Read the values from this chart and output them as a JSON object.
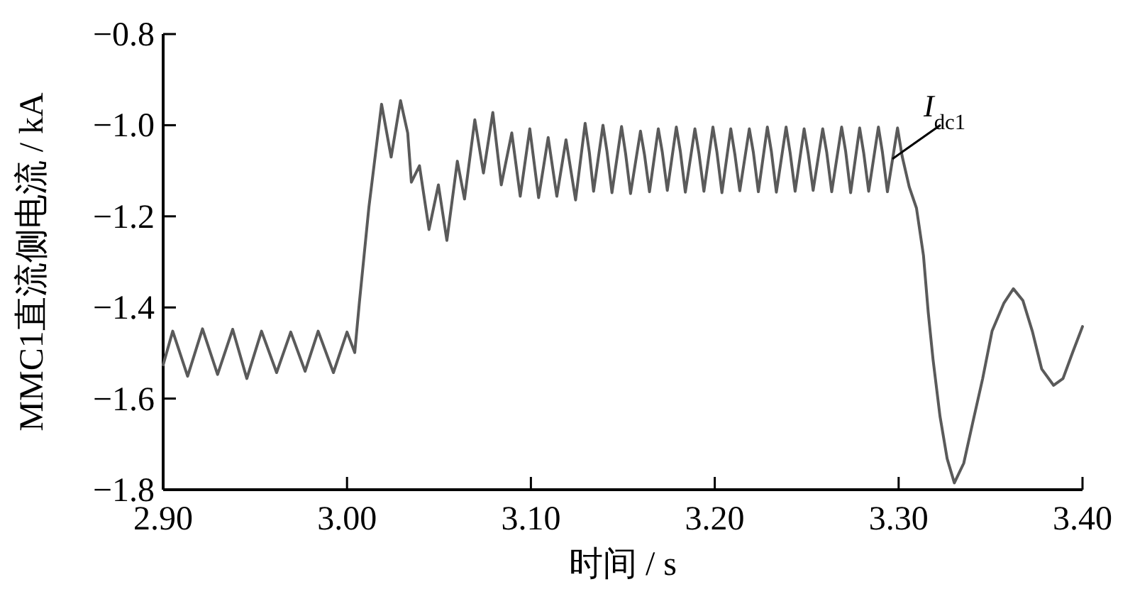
{
  "chart_data": {
    "type": "line",
    "xlabel": "时间 / s",
    "ylabel": "MMC1直流侧电流 / kA",
    "xlim": [
      2.9,
      3.4
    ],
    "ylim": [
      -1.8,
      -0.8
    ],
    "xticks": [
      {
        "value": 2.9,
        "label": "2.90"
      },
      {
        "value": 3.0,
        "label": "3.00"
      },
      {
        "value": 3.1,
        "label": "3.10"
      },
      {
        "value": 3.2,
        "label": "3.20"
      },
      {
        "value": 3.3,
        "label": "3.30"
      },
      {
        "value": 3.4,
        "label": "3.40"
      }
    ],
    "yticks": [
      {
        "value": -1.8,
        "label": "−1.8"
      },
      {
        "value": -1.6,
        "label": "−1.6"
      },
      {
        "value": -1.4,
        "label": "−1.4"
      },
      {
        "value": -1.2,
        "label": "−1.2"
      },
      {
        "value": -1.0,
        "label": "−1.0"
      },
      {
        "value": -0.8,
        "label": "−0.8"
      }
    ],
    "annotations": [
      {
        "text": "I$_{dc1}$",
        "x": 3.2966,
        "y": -1.074
      }
    ],
    "x": [
      2.9,
      2.9052,
      2.9133,
      2.9214,
      2.9296,
      2.9378,
      2.9455,
      2.9535,
      2.9617,
      2.9694,
      2.9772,
      2.9843,
      2.9926,
      3.0,
      3.0042,
      3.0067,
      3.0119,
      3.0188,
      3.024,
      3.0291,
      3.033,
      3.035,
      3.0394,
      3.0446,
      3.0497,
      3.0543,
      3.06,
      3.0639,
      3.0695,
      3.0742,
      3.0793,
      3.0839,
      3.0896,
      3.0942,
      3.0994,
      3.1042,
      3.1094,
      3.1141,
      3.1191,
      3.1243,
      3.1295,
      3.1318,
      3.1341,
      3.1392,
      3.1414,
      3.1441,
      3.1493,
      3.1515,
      3.1542,
      3.1596,
      3.1618,
      3.1645,
      3.1693,
      3.1715,
      3.1742,
      3.1791,
      3.1813,
      3.184,
      3.1892,
      3.1914,
      3.1941,
      3.199,
      3.2012,
      3.2039,
      3.2087,
      3.2109,
      3.2136,
      3.2188,
      3.221,
      3.2237,
      3.2286,
      3.2308,
      3.2335,
      3.2388,
      3.241,
      3.2437,
      3.2486,
      3.2508,
      3.2535,
      3.2587,
      3.2609,
      3.2636,
      3.269,
      3.2712,
      3.2739,
      3.2788,
      3.281,
      3.2837,
      3.289,
      3.2912,
      3.2939,
      3.2994,
      3.3019,
      3.3058,
      3.3097,
      3.3135,
      3.3161,
      3.3187,
      3.3225,
      3.3264,
      3.3303,
      3.3354,
      3.3405,
      3.3457,
      3.3508,
      3.3573,
      3.3624,
      3.3676,
      3.3727,
      3.3778,
      3.3843,
      3.3894,
      3.3946,
      3.4
    ],
    "series": [
      {
        "color": "#5a5a5a",
        "values": [
          -1.526,
          -1.452,
          -1.551,
          -1.447,
          -1.547,
          -1.448,
          -1.556,
          -1.452,
          -1.543,
          -1.454,
          -1.54,
          -1.452,
          -1.543,
          -1.454,
          -1.499,
          -1.39,
          -1.18,
          -0.954,
          -1.07,
          -0.946,
          -1.017,
          -1.125,
          -1.089,
          -1.229,
          -1.131,
          -1.253,
          -1.079,
          -1.162,
          -0.988,
          -1.105,
          -0.972,
          -1.131,
          -1.017,
          -1.156,
          -1.008,
          -1.159,
          -1.027,
          -1.156,
          -1.032,
          -1.164,
          -0.996,
          -1.06,
          -1.145,
          -1.0,
          -1.058,
          -1.148,
          -1.003,
          -1.062,
          -1.15,
          -1.013,
          -1.065,
          -1.146,
          -1.008,
          -1.06,
          -1.143,
          -1.004,
          -1.058,
          -1.147,
          -1.008,
          -1.062,
          -1.145,
          -1.004,
          -1.06,
          -1.148,
          -1.008,
          -1.063,
          -1.144,
          -1.008,
          -1.06,
          -1.146,
          -1.004,
          -1.058,
          -1.147,
          -1.004,
          -1.061,
          -1.145,
          -1.008,
          -1.062,
          -1.143,
          -1.008,
          -1.06,
          -1.146,
          -1.004,
          -1.058,
          -1.148,
          -1.006,
          -1.061,
          -1.145,
          -1.004,
          -1.06,
          -1.146,
          -1.006,
          -1.068,
          -1.136,
          -1.182,
          -1.286,
          -1.411,
          -1.514,
          -1.639,
          -1.732,
          -1.785,
          -1.742,
          -1.649,
          -1.556,
          -1.452,
          -1.39,
          -1.359,
          -1.385,
          -1.452,
          -1.535,
          -1.571,
          -1.556,
          -1.499,
          -1.442
        ]
      }
    ]
  }
}
